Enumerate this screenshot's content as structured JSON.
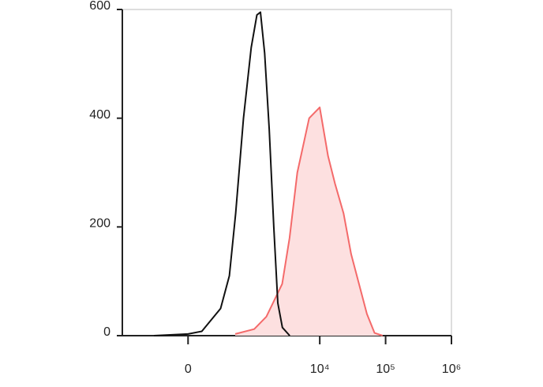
{
  "chart_data": {
    "type": "histogram-overlay",
    "xscale": "arcsinh",
    "xlim": [
      -1200,
      1000000
    ],
    "xticks": [
      0,
      {
        "value": 10000,
        "label": "10⁴"
      },
      {
        "value": 100000,
        "label": "10⁵"
      },
      {
        "value": 1000000,
        "label": "10⁶"
      }
    ],
    "ylim": [
      0,
      600
    ],
    "yticks": [
      0,
      200,
      400,
      600
    ],
    "series": [
      {
        "color": "#111111",
        "fill": "none",
        "x": [
          -300,
          0,
          100,
          280,
          400,
          510,
          680,
          900,
          1100,
          1250,
          1450,
          1700,
          2000,
          2300,
          2700,
          3500
        ],
        "values": [
          0,
          3,
          8,
          50,
          110,
          225,
          400,
          530,
          590,
          595,
          520,
          380,
          200,
          60,
          15,
          0
        ]
      },
      {
        "color": "#f46a6a",
        "fill": "#fde0e0",
        "x": [
          500,
          1000,
          1540,
          2680,
          3480,
          4560,
          6900,
          10000,
          13400,
          17000,
          23000,
          30000,
          39500,
          52000,
          68000,
          90000
        ],
        "values": [
          3,
          12,
          35,
          95,
          180,
          300,
          400,
          420,
          330,
          280,
          225,
          150,
          95,
          40,
          5,
          0
        ]
      }
    ]
  }
}
